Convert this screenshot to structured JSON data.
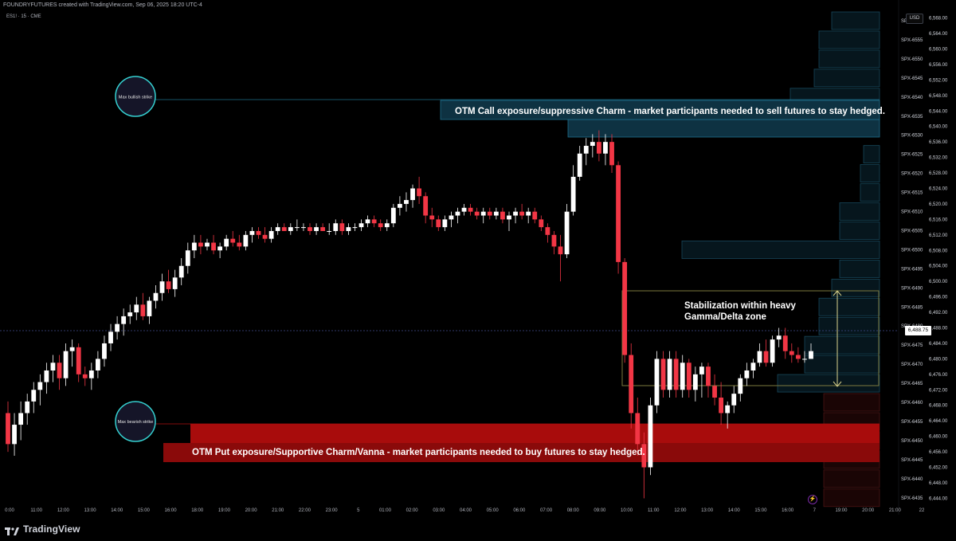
{
  "header": {
    "attribution": "FOUNDRYFUTURES created with TradingView.com, Sep 06, 2025 18:20 UTC-4",
    "symbol": "ES1! · 15 · CME"
  },
  "price_axis": {
    "currency": "USD",
    "last_price": "6,488.75",
    "price_ticks": [
      "6,568.00",
      "6,564.00",
      "6,560.00",
      "6,556.00",
      "6,552.00",
      "6,548.00",
      "6,544.00",
      "6,540.00",
      "6,536.00",
      "6,532.00",
      "6,528.00",
      "6,524.00",
      "6,520.00",
      "6,516.00",
      "6,512.00",
      "6,508.00",
      "6,504.00",
      "6,500.00",
      "6,496.00",
      "6,492.00",
      "6,488.00",
      "6,484.00",
      "6,480.00",
      "6,476.00",
      "6,472.00",
      "6,468.00",
      "6,464.00",
      "6,460.00",
      "6,456.00",
      "6,452.00",
      "6,448.00",
      "6,444.00"
    ],
    "strike_labels": [
      "SPX-6560",
      "SPX-6555",
      "SPX-6550",
      "SPX-6545",
      "SPX-6540",
      "SPX-6535",
      "SPX-6530",
      "SPX-6525",
      "SPX-6520",
      "SPX-6515",
      "SPX-6510",
      "SPX-6505",
      "SPX-6500",
      "SPX-6495",
      "SPX-6490",
      "SPX-6485",
      "SPX-6480",
      "SPX-6475",
      "SPX-6470",
      "SPX-6465",
      "SPX-6460",
      "SPX-6455",
      "SPX-6450",
      "SPX-6445",
      "SPX-6440",
      "SPX-6435"
    ]
  },
  "time_axis": {
    "labels": [
      "0:00",
      "11:00",
      "12:00",
      "13:00",
      "14:00",
      "15:00",
      "16:00",
      "18:00",
      "19:00",
      "20:00",
      "21:00",
      "22:00",
      "23:00",
      "5",
      "01:00",
      "02:00",
      "03:00",
      "04:00",
      "05:00",
      "06:00",
      "07:00",
      "08:00",
      "09:00",
      "10:00",
      "11:00",
      "12:00",
      "13:00",
      "14:00",
      "15:00",
      "16:00",
      "7",
      "19:00",
      "20:00",
      "21:00",
      "22"
    ]
  },
  "annotations": {
    "max_bullish": "Max bullish strike",
    "max_bearish": "Max bearish strike",
    "call_text": "OTM Call exposure/suppressive Charm - market participants needed to sell futures to stay hedged.",
    "put_text": "OTM Put exposure/Supportive Charm/Vanna - market participants needed to buy futures to stay hedged.",
    "stabilization_line1": "Stabilization within heavy",
    "stabilization_line2": "Gamma/Delta zone"
  },
  "footer": {
    "brand": "TradingView"
  },
  "colors": {
    "background": "#000000",
    "up_candle": "#ffffff",
    "down_candle": "#f23645",
    "call_zone": "#0e3242",
    "call_border": "#1e6f8c",
    "put_zone": "#8a0a0a",
    "gamma_box_border": "#7d7a3e",
    "circle_stroke": "#35d0d0",
    "last_price_line": "#3f4a8a"
  },
  "chart_data": {
    "type": "candlestick",
    "symbol": "ES1!",
    "interval": "15",
    "ylim": [
      6441,
      6571
    ],
    "last_price": 6488.75,
    "candles": [
      [
        6466,
        6469,
        6456,
        6458
      ],
      [
        6458,
        6466,
        6455,
        6463
      ],
      [
        6463,
        6469,
        6459,
        6466
      ],
      [
        6466,
        6471,
        6463,
        6469
      ],
      [
        6469,
        6474,
        6466,
        6472
      ],
      [
        6472,
        6476,
        6468,
        6474
      ],
      [
        6474,
        6479,
        6471,
        6477
      ],
      [
        6477,
        6481,
        6474,
        6479
      ],
      [
        6479,
        6481,
        6472,
        6475
      ],
      [
        6475,
        6484,
        6473,
        6482
      ],
      [
        6482,
        6485,
        6478,
        6483
      ],
      [
        6483,
        6484,
        6474,
        6476
      ],
      [
        6476,
        6478,
        6473,
        6475
      ],
      [
        6475,
        6479,
        6472,
        6477
      ],
      [
        6477,
        6482,
        6475,
        6480
      ],
      [
        6480,
        6486,
        6478,
        6484
      ],
      [
        6484,
        6489,
        6482,
        6487
      ],
      [
        6487,
        6491,
        6485,
        6489
      ],
      [
        6489,
        6493,
        6486,
        6491
      ],
      [
        6491,
        6494,
        6489,
        6492
      ],
      [
        6492,
        6496,
        6490,
        6494
      ],
      [
        6494,
        6497,
        6490,
        6491
      ],
      [
        6491,
        6496,
        6489,
        6495
      ],
      [
        6495,
        6499,
        6493,
        6497
      ],
      [
        6497,
        6502,
        6495,
        6500
      ],
      [
        6500,
        6503,
        6497,
        6498
      ],
      [
        6498,
        6503,
        6496,
        6501
      ],
      [
        6501,
        6506,
        6499,
        6504
      ],
      [
        6504,
        6510,
        6502,
        6508
      ],
      [
        6508,
        6512,
        6506,
        6510
      ],
      [
        6510,
        6512,
        6507,
        6509
      ],
      [
        6509,
        6511,
        6508,
        6510
      ],
      [
        6510,
        6512,
        6507,
        6508
      ],
      [
        6508,
        6510,
        6506,
        6509
      ],
      [
        6509,
        6512,
        6508,
        6511
      ],
      [
        6511,
        6513,
        6509,
        6510
      ],
      [
        6510,
        6512,
        6508,
        6509
      ],
      [
        6509,
        6513,
        6508,
        6512
      ],
      [
        6512,
        6514,
        6510,
        6513
      ],
      [
        6513,
        6514,
        6511,
        6512
      ],
      [
        6512,
        6514,
        6510,
        6511
      ],
      [
        6511,
        6514,
        6510,
        6513
      ],
      [
        6513,
        6515,
        6512,
        6514
      ],
      [
        6514,
        6515,
        6513,
        6513
      ],
      [
        6513,
        6515,
        6512,
        6514
      ],
      [
        6514,
        6516,
        6513,
        6514
      ],
      [
        6514,
        6515,
        6513,
        6514
      ],
      [
        6514,
        6515,
        6512,
        6513
      ],
      [
        6513,
        6515,
        6512,
        6514
      ],
      [
        6514,
        6515,
        6513,
        6513
      ],
      [
        6513,
        6515,
        6512,
        6513
      ],
      [
        6513,
        6516,
        6512,
        6515
      ],
      [
        6515,
        6516,
        6512,
        6513
      ],
      [
        6513,
        6515,
        6512,
        6514
      ],
      [
        6514,
        6515,
        6513,
        6514
      ],
      [
        6514,
        6516,
        6513,
        6515
      ],
      [
        6515,
        6517,
        6514,
        6516
      ],
      [
        6516,
        6517,
        6514,
        6515
      ],
      [
        6515,
        6516,
        6513,
        6514
      ],
      [
        6514,
        6516,
        6513,
        6515
      ],
      [
        6515,
        6520,
        6514,
        6519
      ],
      [
        6519,
        6522,
        6517,
        6520
      ],
      [
        6520,
        6523,
        6518,
        6521
      ],
      [
        6521,
        6525,
        6519,
        6524
      ],
      [
        6524,
        6527,
        6520,
        6522
      ],
      [
        6522,
        6523,
        6515,
        6517
      ],
      [
        6517,
        6519,
        6514,
        6516
      ],
      [
        6516,
        6517,
        6513,
        6514
      ],
      [
        6514,
        6517,
        6513,
        6516
      ],
      [
        6516,
        6518,
        6514,
        6517
      ],
      [
        6517,
        6519,
        6515,
        6518
      ],
      [
        6518,
        6520,
        6517,
        6519
      ],
      [
        6519,
        6520,
        6517,
        6518
      ],
      [
        6518,
        6519,
        6516,
        6517
      ],
      [
        6517,
        6519,
        6515,
        6518
      ],
      [
        6518,
        6519,
        6516,
        6517
      ],
      [
        6517,
        6519,
        6516,
        6518
      ],
      [
        6518,
        6519,
        6515,
        6516
      ],
      [
        6516,
        6518,
        6513,
        6517
      ],
      [
        6517,
        6519,
        6515,
        6518
      ],
      [
        6518,
        6520,
        6516,
        6517
      ],
      [
        6517,
        6519,
        6515,
        6518
      ],
      [
        6518,
        6519,
        6515,
        6516
      ],
      [
        6516,
        6517,
        6513,
        6514
      ],
      [
        6514,
        6515,
        6510,
        6512
      ],
      [
        6512,
        6513,
        6507,
        6509
      ],
      [
        6509,
        6512,
        6500,
        6507
      ],
      [
        6507,
        6520,
        6506,
        6518
      ],
      [
        6518,
        6530,
        6517,
        6527
      ],
      [
        6527,
        6535,
        6526,
        6533
      ],
      [
        6533,
        6537,
        6530,
        6535
      ],
      [
        6535,
        6538,
        6532,
        6536
      ],
      [
        6536,
        6539,
        6531,
        6533
      ],
      [
        6533,
        6538,
        6530,
        6536
      ],
      [
        6536,
        6538,
        6528,
        6530
      ],
      [
        6530,
        6531,
        6502,
        6505
      ],
      [
        6505,
        6506,
        6479,
        6481
      ],
      [
        6481,
        6484,
        6462,
        6466
      ],
      [
        6466,
        6470,
        6455,
        6458
      ],
      [
        6458,
        6461,
        6444,
        6452
      ],
      [
        6452,
        6470,
        6450,
        6468
      ],
      [
        6468,
        6482,
        6466,
        6480
      ],
      [
        6480,
        6482,
        6470,
        6472
      ],
      [
        6472,
        6482,
        6470,
        6480
      ],
      [
        6480,
        6482,
        6470,
        6472
      ],
      [
        6472,
        6481,
        6470,
        6479
      ],
      [
        6479,
        6480,
        6470,
        6472
      ],
      [
        6472,
        6478,
        6469,
        6476
      ],
      [
        6476,
        6479,
        6470,
        6478
      ],
      [
        6478,
        6479,
        6470,
        6473
      ],
      [
        6473,
        6476,
        6468,
        6470
      ],
      [
        6470,
        6474,
        6463,
        6466
      ],
      [
        6466,
        6469,
        6462,
        6468
      ],
      [
        6468,
        6473,
        6466,
        6471
      ],
      [
        6471,
        6476,
        6469,
        6475
      ],
      [
        6475,
        6479,
        6473,
        6477
      ],
      [
        6477,
        6480,
        6475,
        6479
      ],
      [
        6479,
        6484,
        6478,
        6482
      ],
      [
        6482,
        6485,
        6478,
        6479
      ],
      [
        6479,
        6486,
        6478,
        6485
      ],
      [
        6485,
        6488,
        6483,
        6486
      ],
      [
        6486,
        6488,
        6480,
        6482
      ],
      [
        6482,
        6484,
        6479,
        6481
      ],
      [
        6481,
        6483,
        6479,
        6480
      ],
      [
        6480,
        6482,
        6479,
        6480
      ],
      [
        6480,
        6484,
        6480,
        6482
      ]
    ],
    "volume_profile_strikes": [
      6560,
      6555,
      6550,
      6545,
      6540,
      6535,
      6530,
      6525,
      6520,
      6515,
      6510,
      6505,
      6500,
      6495,
      6490,
      6485,
      6480,
      6475,
      6470,
      6465,
      6460,
      6455,
      6450,
      6445,
      6440,
      6435
    ],
    "call_zone_strikes": [
      6535,
      6530
    ],
    "put_zone_strikes": [
      6450,
      6445
    ],
    "gamma_box": {
      "price_range": [
        6466,
        6498
      ]
    }
  }
}
